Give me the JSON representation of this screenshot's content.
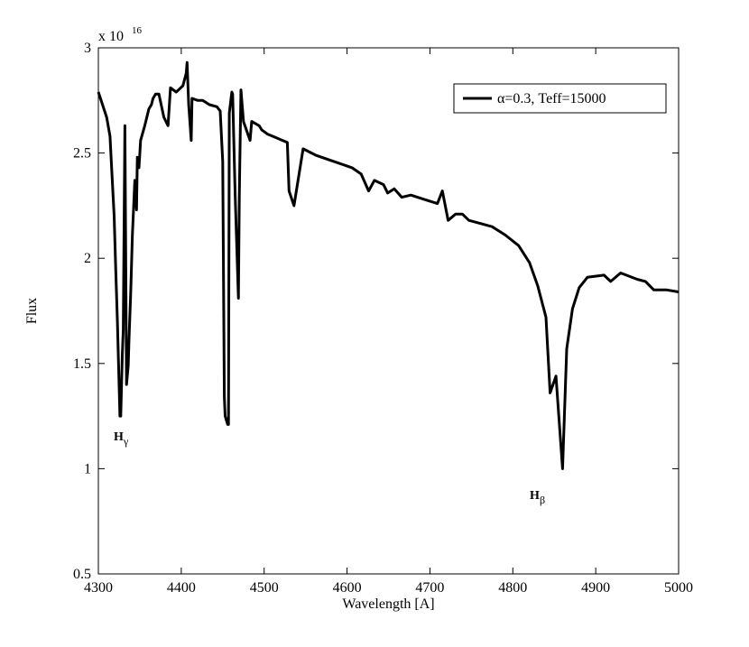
{
  "chart_data": {
    "type": "line",
    "xlabel": "Wavelength [A]",
    "ylabel": "Flux",
    "y_scale_label": "x 10",
    "y_scale_power": "16",
    "xlim": [
      4300,
      5000
    ],
    "ylim": [
      0.5,
      3
    ],
    "xticks": [
      4300,
      4400,
      4500,
      4600,
      4700,
      4800,
      4900,
      5000
    ],
    "yticks": [
      0.5,
      1,
      1.5,
      2,
      2.5,
      3
    ],
    "legend": "upper right",
    "annotations": [
      {
        "text": "H",
        "subscript": "γ"
      },
      {
        "text": "H",
        "subscript": "β"
      }
    ],
    "series": [
      {
        "name": "α=0.3, Teff=15000",
        "color": "#000000",
        "x": [
          4300,
          4310,
          4314,
          4316,
          4319,
          4321,
          4323,
          4326,
          4327,
          4329,
          4330,
          4332,
          4334,
          4336,
          4337,
          4339,
          4341,
          4344,
          4346,
          4347,
          4349,
          4351,
          4356,
          4361,
          4364,
          4366,
          4369,
          4373,
          4379,
          4384,
          4387,
          4394,
          4402,
          4406,
          4407,
          4409,
          4412,
          4413,
          4420,
          4426,
          4434,
          4443,
          4447,
          4450,
          4452,
          4453,
          4456,
          4457,
          4458,
          4461,
          4462,
          4465,
          4469,
          4470,
          4472,
          4475,
          4483,
          4485,
          4494,
          4497,
          4504,
          4510,
          4528,
          4530,
          4536,
          4547,
          4562,
          4584,
          4606,
          4617,
          4626,
          4633,
          4644,
          4649,
          4657,
          4666,
          4677,
          4693,
          4709,
          4715,
          4722,
          4731,
          4739,
          4747,
          4775,
          4791,
          4807,
          4820,
          4830,
          4840,
          4845,
          4852,
          4860,
          4865,
          4872,
          4880,
          4890,
          4910,
          4918,
          4930,
          4950,
          4960,
          4970,
          4985,
          5000
        ],
        "values": [
          2.79,
          2.67,
          2.58,
          2.43,
          2.2,
          1.94,
          1.7,
          1.25,
          1.25,
          1.55,
          1.66,
          2.63,
          1.4,
          1.49,
          1.62,
          1.83,
          2.11,
          2.37,
          2.23,
          2.48,
          2.43,
          2.56,
          2.63,
          2.71,
          2.73,
          2.76,
          2.78,
          2.78,
          2.67,
          2.63,
          2.81,
          2.79,
          2.82,
          2.88,
          2.93,
          2.73,
          2.56,
          2.76,
          2.75,
          2.75,
          2.73,
          2.72,
          2.7,
          2.46,
          1.34,
          1.25,
          1.21,
          1.21,
          2.69,
          2.79,
          2.78,
          2.3,
          1.81,
          2.3,
          2.8,
          2.65,
          2.56,
          2.65,
          2.63,
          2.61,
          2.59,
          2.58,
          2.55,
          2.32,
          2.25,
          2.52,
          2.49,
          2.46,
          2.43,
          2.4,
          2.32,
          2.37,
          2.35,
          2.31,
          2.33,
          2.29,
          2.3,
          2.28,
          2.26,
          2.32,
          2.18,
          2.21,
          2.21,
          2.18,
          2.15,
          2.11,
          2.06,
          1.98,
          1.87,
          1.72,
          1.36,
          1.44,
          1.0,
          1.57,
          1.76,
          1.86,
          1.91,
          1.92,
          1.89,
          1.93,
          1.9,
          1.89,
          1.85,
          1.85,
          1.84
        ]
      }
    ]
  }
}
